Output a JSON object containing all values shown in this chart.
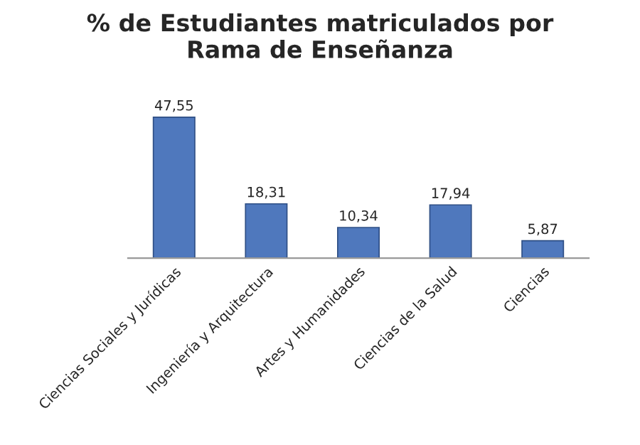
{
  "chart_data": {
    "type": "bar",
    "title": "% de Estudiantes matriculados por\nRama de Enseñanza",
    "categories": [
      "Ciencias Sociales y Jurídicas",
      "Ingeniería y Arquitectura",
      "Artes y Humanidades",
      "Ciencias de la Salud",
      "Ciencias"
    ],
    "values": [
      47.55,
      18.31,
      10.34,
      17.94,
      5.87
    ],
    "value_labels": [
      "47,55",
      "18,31",
      "10,34",
      "17,94",
      "5,87"
    ],
    "color": "#4f78bd",
    "tick_labels": "x",
    "grid": false,
    "legend": false
  }
}
